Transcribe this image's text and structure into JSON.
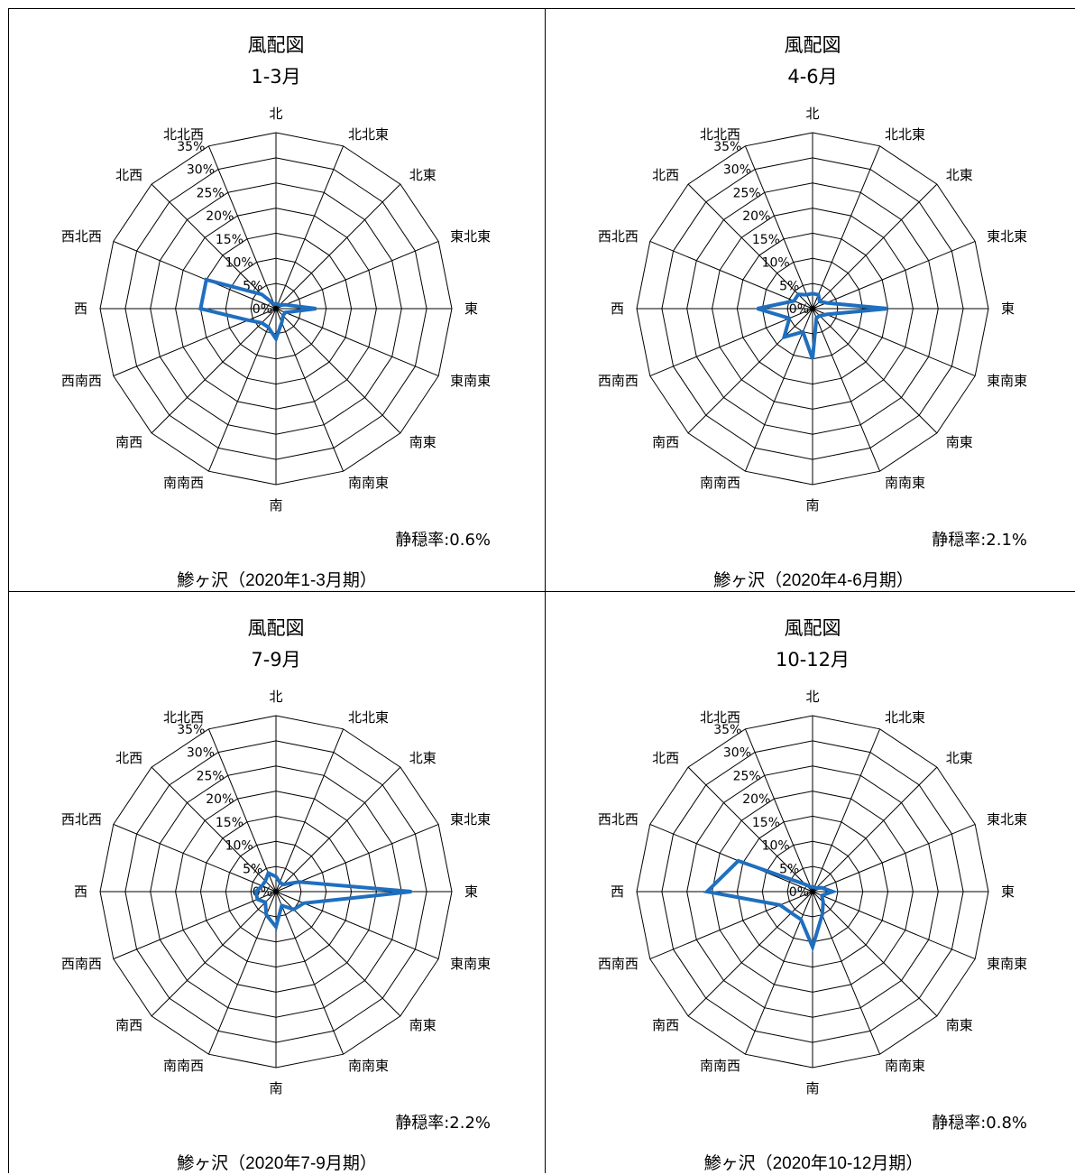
{
  "directions": [
    "北",
    "北北東",
    "北東",
    "東北東",
    "東",
    "東南東",
    "南東",
    "南南東",
    "南",
    "南南西",
    "南西",
    "西南西",
    "西",
    "西北西",
    "北西",
    "北北西"
  ],
  "chart_data": [
    {
      "type": "radar",
      "title": "風配図",
      "subtitle": "1-3月",
      "calm_label": "静穏率:0.6%",
      "caption": "鯵ヶ沢（2020年1-3月期）",
      "rlim": [
        0,
        35
      ],
      "ticks": [
        "0%",
        "5%",
        "10%",
        "15%",
        "20%",
        "25%",
        "30%",
        "35%"
      ],
      "categories": [
        "北",
        "北北東",
        "北東",
        "東北東",
        "東",
        "東南東",
        "南東",
        "南南東",
        "南",
        "南南西",
        "南西",
        "西南西",
        "西",
        "西北西",
        "北西",
        "北北西"
      ],
      "values": [
        1,
        1,
        1,
        2,
        8,
        2,
        2,
        3,
        6,
        4,
        4,
        6,
        15,
        15,
        4,
        1
      ]
    },
    {
      "type": "radar",
      "title": "風配図",
      "subtitle": "4-6月",
      "calm_label": "静穏率:2.1%",
      "caption": "鯵ヶ沢（2020年4-6月期）",
      "rlim": [
        0,
        35
      ],
      "ticks": [
        "0%",
        "5%",
        "10%",
        "15%",
        "20%",
        "25%",
        "30%",
        "35%"
      ],
      "categories": [
        "北",
        "北北東",
        "北東",
        "東北東",
        "東",
        "東南東",
        "南東",
        "南南東",
        "南",
        "南南西",
        "南西",
        "西南西",
        "西",
        "西北西",
        "北西",
        "北北西"
      ],
      "values": [
        3,
        3,
        2,
        3,
        15,
        3,
        2,
        2,
        10,
        5,
        8,
        5,
        11,
        4,
        4,
        3
      ]
    },
    {
      "type": "radar",
      "title": "風配図",
      "subtitle": "7-9月",
      "calm_label": "静穏率:2.2%",
      "caption": "鯵ヶ沢（2020年7-9月期）",
      "rlim": [
        0,
        35
      ],
      "ticks": [
        "0%",
        "5%",
        "10%",
        "15%",
        "20%",
        "25%",
        "30%",
        "35%"
      ],
      "categories": [
        "北",
        "北北東",
        "北東",
        "東北東",
        "東",
        "東南東",
        "南東",
        "南南東",
        "南",
        "南南西",
        "南西",
        "西南西",
        "西",
        "西北西",
        "北西",
        "北北西"
      ],
      "values": [
        3,
        2,
        2,
        5,
        27,
        6,
        5,
        3,
        7,
        5,
        3,
        4,
        4,
        3,
        3,
        4
      ]
    },
    {
      "type": "radar",
      "title": "風配図",
      "subtitle": "10-12月",
      "calm_label": "静穏率:0.8%",
      "caption": "鯵ヶ沢（2020年10-12月期）",
      "rlim": [
        0,
        35
      ],
      "ticks": [
        "0%",
        "5%",
        "10%",
        "15%",
        "20%",
        "25%",
        "30%",
        "35%"
      ],
      "categories": [
        "北",
        "北北東",
        "北東",
        "東北東",
        "東",
        "東南東",
        "南東",
        "南南東",
        "南",
        "南南西",
        "南西",
        "西南西",
        "西",
        "西北西",
        "北西",
        "北北西"
      ],
      "values": [
        1,
        1,
        1,
        2,
        4,
        2,
        3,
        5,
        11,
        6,
        6,
        7,
        21,
        16,
        2,
        1
      ]
    }
  ],
  "colors": {
    "series": "#1f6fbf",
    "grid": "#000000"
  }
}
